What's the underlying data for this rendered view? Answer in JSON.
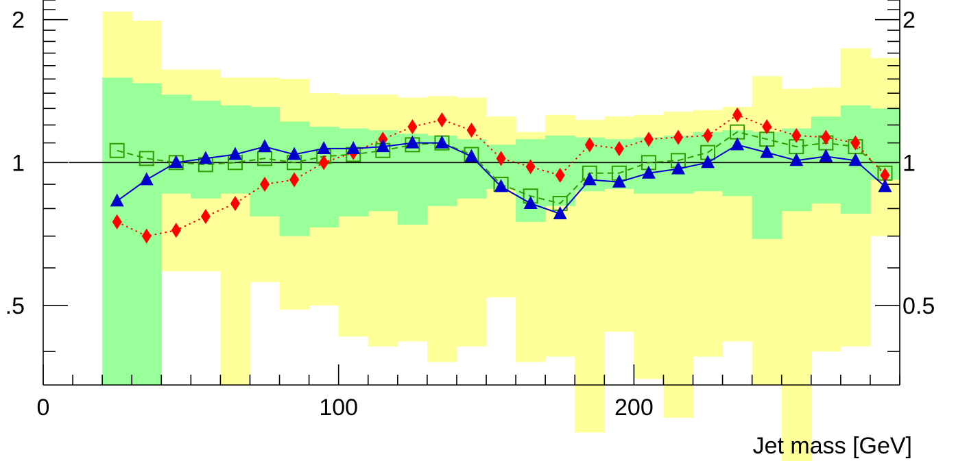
{
  "chart_data": {
    "type": "line",
    "xlabel": "Jet mass [GeV]",
    "ylabel": "",
    "xlim": [
      0,
      290
    ],
    "ylim": [
      0.34,
      2.2
    ],
    "y_scale": "log",
    "reference_line": 1,
    "x_ticks": [
      0,
      100,
      200
    ],
    "y_ticks_left": [
      ".5",
      "1",
      "2"
    ],
    "y_ticks_right": [
      "0.5",
      "1",
      "2"
    ],
    "y_tick_values": [
      0.5,
      1,
      2
    ],
    "colors": {
      "band_2sigma": "#ffff99",
      "band_1sigma": "#99ff99",
      "triangle_series": "#0000cc",
      "square_series": "#339900",
      "diamond_series": "#ff0000"
    },
    "bands": {
      "bin_edges": [
        20,
        30,
        40,
        50,
        60,
        70,
        80,
        90,
        100,
        110,
        120,
        130,
        140,
        150,
        160,
        170,
        180,
        190,
        200,
        210,
        220,
        230,
        240,
        250,
        260,
        270,
        280,
        290
      ],
      "two_sigma_low": [
        0.34,
        0.34,
        0.59,
        0.59,
        0.34,
        0.56,
        0.49,
        0.5,
        0.43,
        0.41,
        0.42,
        0.38,
        0.41,
        0.52,
        0.38,
        0.39,
        0.27,
        0.44,
        0.35,
        0.29,
        0.39,
        0.42,
        0.34,
        0.23,
        0.4,
        0.41,
        0.7
      ],
      "two_sigma_high": [
        2.08,
        1.99,
        1.57,
        1.57,
        1.51,
        1.51,
        1.5,
        1.4,
        1.39,
        1.39,
        1.37,
        1.38,
        1.37,
        1.25,
        1.16,
        1.26,
        1.23,
        1.25,
        1.26,
        1.28,
        1.29,
        1.31,
        1.52,
        1.43,
        1.44,
        1.74,
        1.66
      ],
      "one_sigma_low": [
        0.34,
        0.34,
        0.86,
        0.84,
        0.86,
        0.77,
        0.7,
        0.73,
        0.77,
        0.79,
        0.74,
        0.81,
        0.84,
        0.88,
        0.75,
        0.81,
        0.87,
        0.88,
        0.86,
        0.86,
        0.87,
        0.85,
        0.69,
        0.79,
        0.82,
        0.78,
        0.92
      ],
      "one_sigma_high": [
        1.51,
        1.47,
        1.39,
        1.35,
        1.32,
        1.31,
        1.22,
        1.19,
        1.18,
        1.17,
        1.15,
        1.14,
        1.12,
        1.09,
        1.12,
        1.14,
        1.13,
        1.12,
        1.13,
        1.14,
        1.16,
        1.17,
        1.16,
        1.18,
        1.25,
        1.32,
        1.3
      ]
    },
    "series": [
      {
        "marker": "triangle",
        "style": "solid",
        "x": [
          25,
          35,
          45,
          55,
          65,
          75,
          85,
          95,
          105,
          115,
          125,
          135,
          145,
          155,
          165,
          175,
          185,
          195,
          205,
          215,
          225,
          235,
          245,
          255,
          265,
          275,
          285
        ],
        "values": [
          0.83,
          0.92,
          1.0,
          1.02,
          1.04,
          1.08,
          1.04,
          1.07,
          1.07,
          1.08,
          1.1,
          1.1,
          1.03,
          0.89,
          0.82,
          0.78,
          0.92,
          0.91,
          0.95,
          0.97,
          1.0,
          1.09,
          1.05,
          1.01,
          1.03,
          1.01,
          0.89
        ]
      },
      {
        "marker": "open-square",
        "style": "dashed",
        "x": [
          25,
          35,
          45,
          55,
          65,
          75,
          85,
          95,
          105,
          115,
          125,
          135,
          145,
          155,
          165,
          175,
          185,
          195,
          205,
          215,
          225,
          235,
          245,
          255,
          265,
          275,
          285
        ],
        "values": [
          1.06,
          1.02,
          1.0,
          0.99,
          1.0,
          1.02,
          1.0,
          1.03,
          1.04,
          1.06,
          1.09,
          1.1,
          1.04,
          0.9,
          0.85,
          0.82,
          0.95,
          0.95,
          1.0,
          1.01,
          1.05,
          1.16,
          1.12,
          1.08,
          1.1,
          1.08,
          0.95
        ]
      },
      {
        "marker": "diamond",
        "style": "dotted",
        "x": [
          25,
          35,
          45,
          55,
          65,
          75,
          85,
          95,
          105,
          115,
          125,
          135,
          145,
          155,
          165,
          175,
          185,
          195,
          205,
          215,
          225,
          235,
          245,
          255,
          265,
          275,
          285
        ],
        "values": [
          0.75,
          0.7,
          0.72,
          0.77,
          0.82,
          0.9,
          0.92,
          1.0,
          1.05,
          1.12,
          1.19,
          1.23,
          1.17,
          1.02,
          0.98,
          0.94,
          1.09,
          1.07,
          1.12,
          1.13,
          1.14,
          1.26,
          1.19,
          1.14,
          1.13,
          1.1,
          0.94
        ]
      }
    ]
  }
}
